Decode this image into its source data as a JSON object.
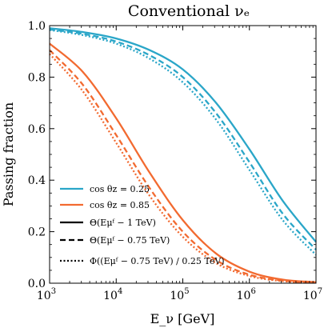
{
  "chart_data": {
    "type": "line",
    "title": "Conventional νₑ",
    "xlabel": "E_ν [GeV]",
    "ylabel": "Passing fraction",
    "xscale": "log",
    "xlim": [
      1000,
      10000000
    ],
    "ylim": [
      0,
      1
    ],
    "xticks": [
      {
        "value": 1000,
        "base": "10",
        "exp": "3"
      },
      {
        "value": 10000,
        "base": "10",
        "exp": "4"
      },
      {
        "value": 100000,
        "base": "10",
        "exp": "5"
      },
      {
        "value": 1000000,
        "base": "10",
        "exp": "6"
      },
      {
        "value": 10000000,
        "base": "10",
        "exp": "7"
      }
    ],
    "yticks": [
      {
        "value": 0.0,
        "label": "0.0"
      },
      {
        "value": 0.2,
        "label": "0.2"
      },
      {
        "value": 0.4,
        "label": "0.4"
      },
      {
        "value": 0.6,
        "label": "0.6"
      },
      {
        "value": 0.8,
        "label": "0.8"
      },
      {
        "value": 1.0,
        "label": "1.0"
      }
    ],
    "colors": {
      "cos025": "#2aa6c8",
      "cos085": "#f26a30"
    },
    "x": [
      1000,
      3162,
      10000,
      31623,
      100000,
      316228,
      1000000,
      3162278,
      10000000
    ],
    "series": [
      {
        "group": "cos025",
        "style": "solid",
        "values": [
          0.99,
          0.975,
          0.95,
          0.905,
          0.83,
          0.7,
          0.52,
          0.32,
          0.16
        ]
      },
      {
        "group": "cos025",
        "style": "dashed",
        "values": [
          0.985,
          0.968,
          0.938,
          0.885,
          0.8,
          0.66,
          0.47,
          0.27,
          0.13
        ]
      },
      {
        "group": "cos025",
        "style": "dotted",
        "values": [
          0.983,
          0.963,
          0.93,
          0.872,
          0.78,
          0.635,
          0.44,
          0.245,
          0.11
        ]
      },
      {
        "group": "cos085",
        "style": "solid",
        "values": [
          0.93,
          0.82,
          0.64,
          0.43,
          0.245,
          0.115,
          0.045,
          0.014,
          0.004
        ]
      },
      {
        "group": "cos085",
        "style": "dashed",
        "values": [
          0.905,
          0.77,
          0.575,
          0.37,
          0.2,
          0.09,
          0.033,
          0.01,
          0.002
        ]
      },
      {
        "group": "cos085",
        "style": "dotted",
        "values": [
          0.89,
          0.745,
          0.545,
          0.34,
          0.18,
          0.078,
          0.028,
          0.008,
          0.002
        ]
      }
    ],
    "legend": {
      "placement": "lower-left",
      "entries": [
        {
          "kind": "color",
          "group": "cos025",
          "label": "cos θz = 0.25"
        },
        {
          "kind": "color",
          "group": "cos085",
          "label": "cos θz = 0.85"
        },
        {
          "kind": "style",
          "style": "solid",
          "label": "Θ(Eμᶠ − 1 TeV)"
        },
        {
          "kind": "style",
          "style": "dashed",
          "label": "Θ(Eμᶠ − 0.75 TeV)"
        },
        {
          "kind": "style",
          "style": "dotted",
          "label": "Φ((Eμᶠ − 0.75 TeV) / 0.25 TeV)"
        }
      ]
    }
  }
}
